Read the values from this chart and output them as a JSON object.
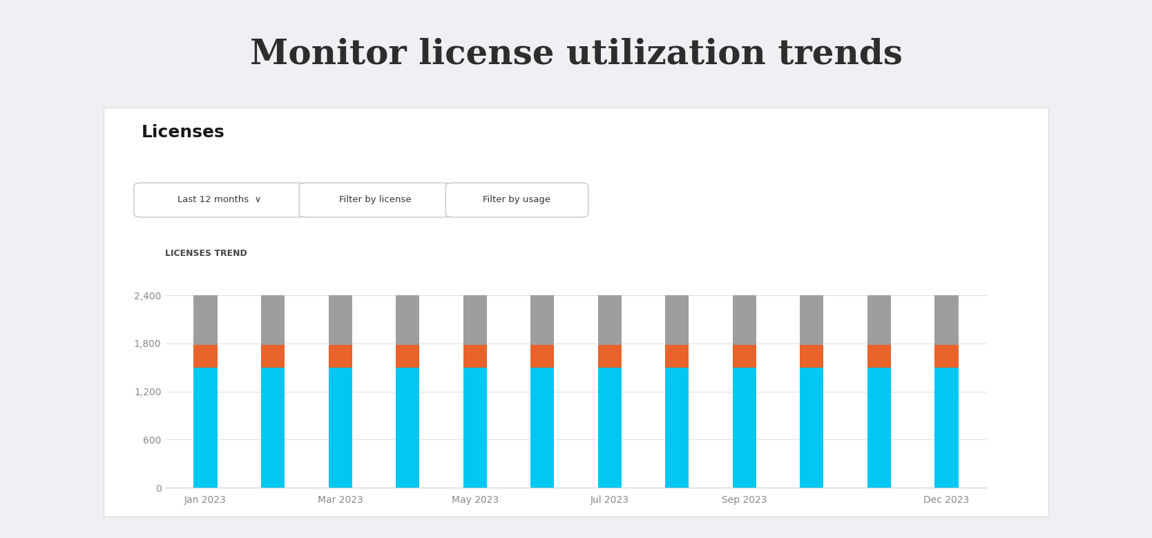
{
  "title": "Monitor license utilization trends",
  "title_fontsize": 36,
  "title_color": "#2d2d2d",
  "background_color": "#eef0f4",
  "card_color": "#ffffff",
  "card_title": "Licenses",
  "card_subtitle": "LICENSES TREND",
  "filter_labels": [
    "Last 12 months  ⌄",
    "Filter by license",
    "Filter by usage"
  ],
  "month_positions": [
    0,
    1,
    2,
    3,
    4,
    5,
    6,
    7,
    8,
    9,
    10,
    11
  ],
  "x_tick_labels": [
    "Jan 2023",
    "Mar 2023",
    "May 2023",
    "Jul 2023",
    "Sep 2023",
    "Dec 2023"
  ],
  "x_tick_positions": [
    0,
    2,
    4,
    6,
    8,
    11
  ],
  "cyan_values": [
    1500,
    1500,
    1500,
    1500,
    1500,
    1500,
    1500,
    1500,
    1500,
    1500,
    1500,
    1500
  ],
  "orange_values": [
    280,
    280,
    280,
    280,
    280,
    280,
    280,
    280,
    280,
    280,
    280,
    280
  ],
  "gray_values": [
    620,
    620,
    620,
    620,
    620,
    620,
    620,
    620,
    620,
    620,
    620,
    620
  ],
  "cyan_color": "#00c8f0",
  "orange_color": "#e8622a",
  "gray_color": "#9e9e9e",
  "ylim": [
    0,
    2700
  ],
  "yticks": [
    0,
    600,
    1200,
    1800,
    2400
  ],
  "ytick_labels": [
    "0",
    "600",
    "1,200",
    "1,800",
    "2,400"
  ],
  "grid_color": "#e0e0e0",
  "bar_width": 0.35,
  "axis_label_color": "#888888",
  "axis_label_fontsize": 10
}
